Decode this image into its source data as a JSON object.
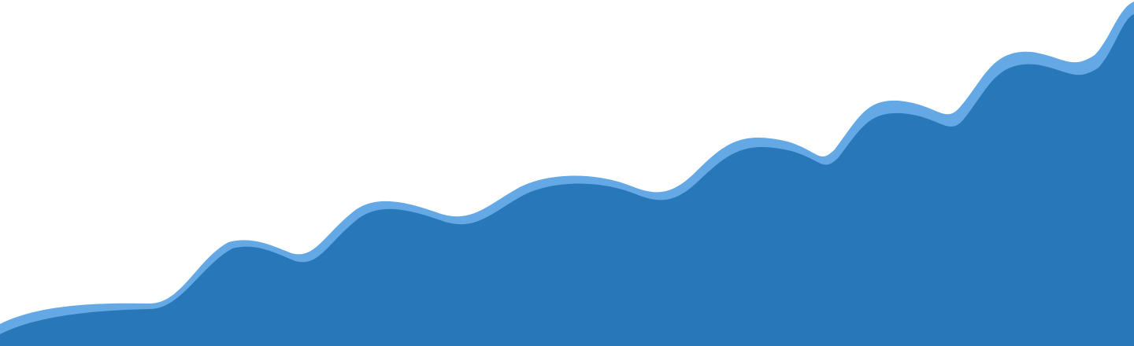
{
  "colors": {
    "background": "#ffffff",
    "wave_highlight": "#64a9e6",
    "wave_fill": "#2878b9"
  },
  "decor": {
    "shape": "wave-hero-background",
    "layers": [
      "wave-highlight-layer",
      "wave-fill-layer"
    ]
  }
}
